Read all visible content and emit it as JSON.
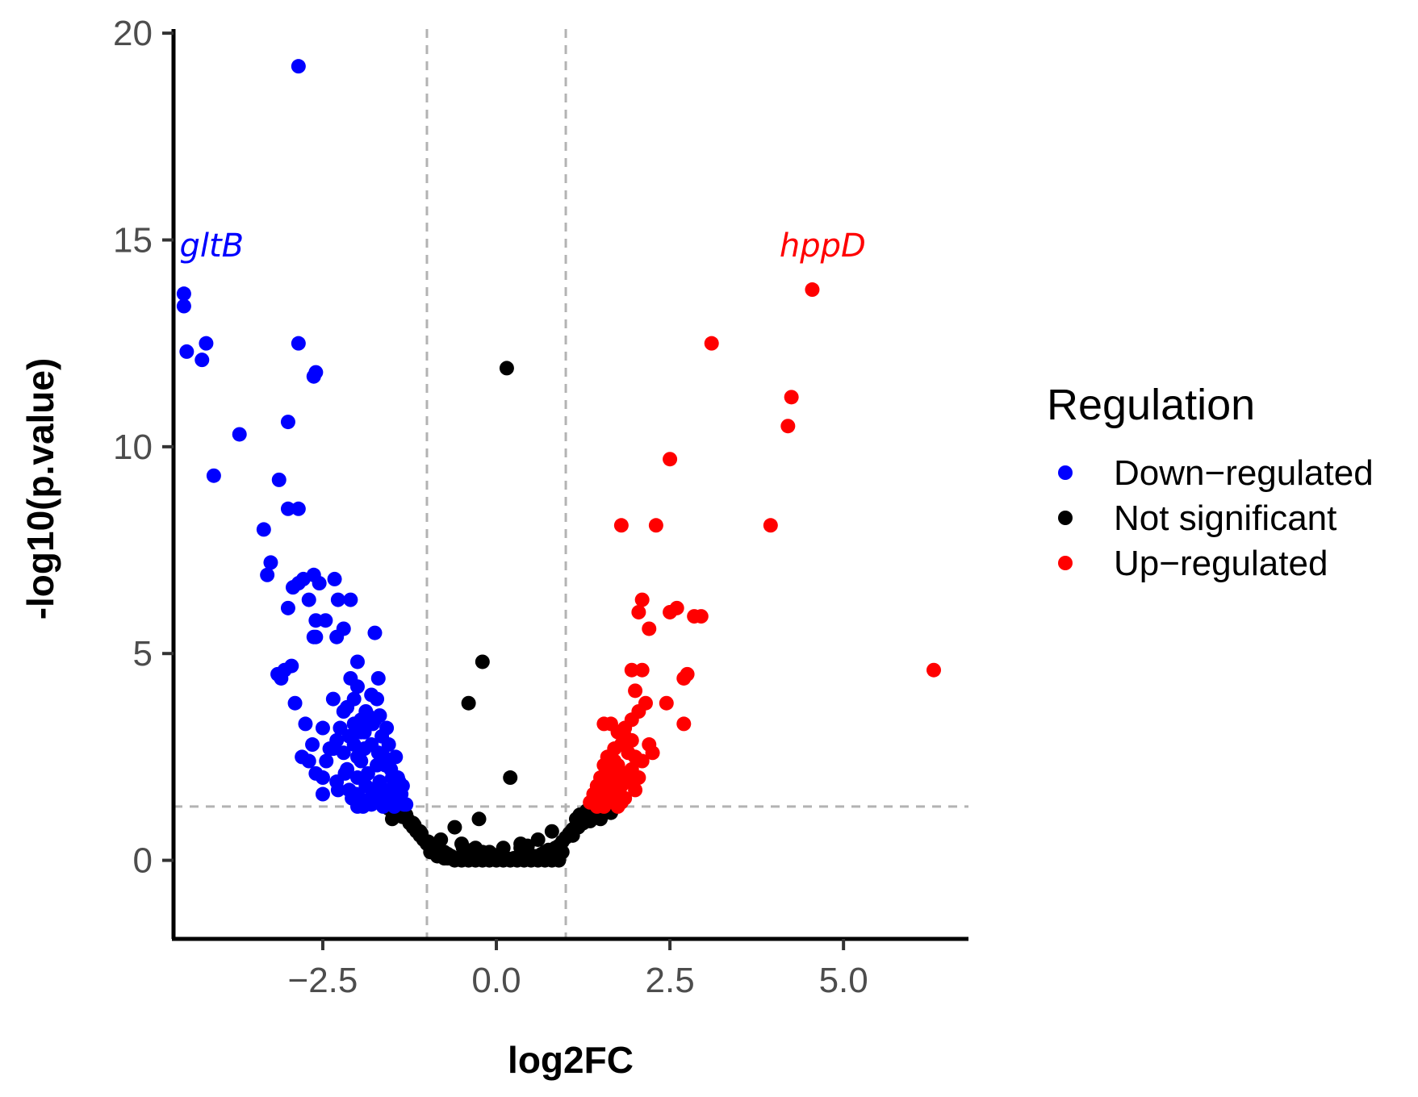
{
  "chart_data": {
    "type": "scatter",
    "title": "",
    "xlabel": "log2FC",
    "ylabel": "-log10(p.value)",
    "xlim": [
      -4.65,
      6.8
    ],
    "ylim": [
      -1.9,
      20.1
    ],
    "x_ticks": [
      -2.5,
      0.0,
      2.5,
      5.0
    ],
    "x_tick_labels": [
      "−2.5",
      "0.0",
      "2.5",
      "5.0"
    ],
    "y_ticks": [
      0,
      5,
      10,
      15,
      20
    ],
    "y_tick_labels": [
      "0",
      "5",
      "10",
      "15",
      "20"
    ],
    "thresholds": {
      "log2fc": [
        -1,
        1
      ],
      "neg_log10_p": 1.3
    },
    "grid": false,
    "legend": {
      "title": "Regulation",
      "position": "right",
      "entries": [
        {
          "label": "Down−regulated",
          "color": "#0000ff"
        },
        {
          "label": "Not significant",
          "color": "#000000"
        },
        {
          "label": "Up−regulated",
          "color": "#ff0000"
        }
      ]
    },
    "annotations": [
      {
        "text": "gltB",
        "x": -4.1,
        "y": 14.6,
        "color": "#0000ff"
      },
      {
        "text": "hppD",
        "x": 4.7,
        "y": 14.6,
        "color": "#ff0000"
      }
    ],
    "series": [
      {
        "name": "Down−regulated",
        "color": "#0000ff",
        "x": [
          -2.85,
          -4.5,
          -4.5,
          -4.46,
          -4.24,
          -4.18,
          -3.7,
          -2.85,
          -2.6,
          -2.63,
          -3.0,
          -3.13,
          -4.07,
          -3.35,
          -3.0,
          -2.85,
          -3.25,
          -3.3,
          -2.78,
          -2.85,
          -2.93,
          -2.63,
          -2.55,
          -2.33,
          -2.28,
          -3.0,
          -2.7,
          -2.6,
          -2.46,
          -2.63,
          -2.1,
          -2.2,
          -2.3,
          -2.0,
          -2.6,
          -1.75,
          -2.95,
          -3.05,
          -3.1,
          -3.15,
          -2.9,
          -2.75,
          -2.35,
          -2.1,
          -2.0,
          -2.5,
          -2.8,
          -2.4,
          -2.2,
          -1.7,
          -2.65,
          -2.7,
          -2.6,
          -2.5,
          -2.25,
          -2.15,
          -2.05,
          -1.95,
          -1.85,
          -1.75,
          -1.65,
          -1.55,
          -1.45,
          -2.3,
          -2.1,
          -2.0,
          -1.9,
          -1.8,
          -1.7,
          -1.6,
          -1.5,
          -1.4,
          -1.35,
          -2.2,
          -2.05,
          -1.95,
          -1.85,
          -1.72,
          -1.62,
          -1.52,
          -1.42,
          -2.45,
          -2.35,
          -2.15,
          -2.0,
          -1.88,
          -1.78,
          -1.68,
          -1.58,
          -1.48,
          -1.38,
          -2.5,
          -2.3,
          -2.12,
          -1.97,
          -1.82,
          -1.7,
          -1.6,
          -1.5,
          -1.42,
          -1.33,
          -2.18,
          -2.02,
          -1.9,
          -1.8,
          -1.67,
          -1.57,
          -1.47,
          -2.28,
          -2.08,
          -1.92,
          -1.77,
          -1.64,
          -1.55,
          -1.45,
          -1.37,
          -1.3,
          -2.0,
          -1.85,
          -1.75,
          -1.63,
          -1.55,
          -1.9,
          -1.78,
          -1.68,
          -1.58,
          -2.05,
          -1.95,
          -2.12,
          -1.88,
          -1.72,
          -1.8
        ],
        "y": [
          19.2,
          13.7,
          13.4,
          12.3,
          12.1,
          12.5,
          10.3,
          12.5,
          11.8,
          11.7,
          10.6,
          9.2,
          9.3,
          8.0,
          8.5,
          8.5,
          7.2,
          6.9,
          6.8,
          6.7,
          6.6,
          6.9,
          6.7,
          6.8,
          6.3,
          6.1,
          6.3,
          5.8,
          5.8,
          5.4,
          6.3,
          5.6,
          5.4,
          4.8,
          5.4,
          5.5,
          4.7,
          4.6,
          4.4,
          4.5,
          3.8,
          3.3,
          3.9,
          4.4,
          4.2,
          3.2,
          2.5,
          2.7,
          3.6,
          4.4,
          2.8,
          2.4,
          2.1,
          1.6,
          3.2,
          3.7,
          3.9,
          3.4,
          3.5,
          3.4,
          3.0,
          2.8,
          2.5,
          2.9,
          3.0,
          2.5,
          2.7,
          2.8,
          2.6,
          2.3,
          2.0,
          1.9,
          1.8,
          2.6,
          2.8,
          2.4,
          2.1,
          2.3,
          2.5,
          2.2,
          2.0,
          2.4,
          2.7,
          2.2,
          2.0,
          1.8,
          1.6,
          1.9,
          1.7,
          1.5,
          1.4,
          2.0,
          1.9,
          1.7,
          1.5,
          1.4,
          1.8,
          1.6,
          1.7,
          1.5,
          1.35,
          2.1,
          1.6,
          1.45,
          1.35,
          1.5,
          1.4,
          1.3,
          1.7,
          1.5,
          1.3,
          1.45,
          1.35,
          1.4,
          1.5,
          1.6,
          1.35,
          1.3,
          1.4,
          1.6,
          1.3,
          1.45,
          3.1,
          3.3,
          3.5,
          3.2,
          3.3,
          3.1,
          3.0,
          3.6,
          3.9,
          4.0
        ]
      },
      {
        "name": "Not significant",
        "color": "#000000",
        "x": [
          0.15,
          -0.2,
          -0.4,
          0.2,
          -0.25,
          -0.6,
          -1.2,
          -1.1,
          -0.8,
          -0.5,
          -0.3,
          -0.1,
          0.1,
          0.35,
          0.6,
          0.8,
          1.15,
          1.2,
          1.25,
          1.3,
          1.4,
          1.5,
          1.6,
          -1.3,
          -1.4,
          -1.5,
          -1.25,
          -1.35,
          -1.15,
          -1.05,
          -0.95,
          -0.9,
          -0.85,
          -0.75,
          -0.7,
          -0.65,
          -0.55,
          -0.45,
          -0.35,
          -0.25,
          -0.15,
          -0.05,
          0.05,
          0.15,
          0.25,
          0.3,
          0.4,
          0.45,
          0.5,
          0.55,
          0.65,
          0.7,
          0.75,
          0.85,
          0.9,
          0.95,
          1.0,
          1.05,
          1.1,
          -1.0,
          -0.9,
          -0.8,
          -0.7,
          -0.6,
          -0.5,
          -0.4,
          -0.3,
          -0.2,
          -0.1,
          0.0,
          0.1,
          0.2,
          0.3,
          0.4,
          0.5,
          0.6,
          0.7,
          0.8,
          0.9,
          -1.1,
          -1.2,
          1.1,
          1.2,
          1.3,
          -0.95,
          -0.85,
          -0.75,
          0.75,
          0.85,
          0.95,
          1.35,
          1.45,
          1.55,
          -1.45,
          -1.55,
          1.65,
          -1.28,
          -1.18,
          -1.08,
          -0.98,
          1.08,
          1.18,
          1.28,
          -0.48,
          -0.2,
          0.35,
          0.05,
          -0.35,
          0.45
        ],
        "y": [
          11.9,
          4.8,
          3.8,
          2.0,
          1.0,
          0.8,
          0.9,
          0.7,
          0.5,
          0.4,
          0.3,
          0.2,
          0.3,
          0.4,
          0.5,
          0.7,
          1.0,
          1.1,
          0.9,
          1.2,
          1.1,
          1.0,
          1.2,
          1.1,
          1.2,
          1.0,
          0.9,
          1.05,
          0.7,
          0.5,
          0.35,
          0.3,
          0.25,
          0.2,
          0.15,
          0.1,
          0.05,
          0.05,
          0.1,
          0.05,
          0.05,
          0.05,
          0.05,
          0.05,
          0.05,
          0.05,
          0.05,
          0.1,
          0.05,
          0.1,
          0.15,
          0.2,
          0.25,
          0.3,
          0.35,
          0.45,
          0.55,
          0.65,
          0.75,
          0.4,
          0.25,
          0.15,
          0.05,
          0.0,
          0.0,
          0.0,
          0.0,
          0.0,
          0.0,
          0.0,
          0.0,
          0.0,
          0.0,
          0.0,
          0.0,
          0.0,
          0.0,
          0.0,
          0.0,
          0.6,
          0.8,
          0.6,
          0.85,
          0.95,
          0.2,
          0.1,
          0.05,
          0.05,
          0.1,
          0.2,
          0.95,
          1.05,
          1.15,
          1.15,
          1.25,
          1.15,
          1.0,
          0.85,
          0.65,
          0.45,
          0.7,
          0.8,
          0.95,
          0.3,
          0.2,
          0.3,
          0.15,
          0.25,
          0.35
        ]
      },
      {
        "name": "Up−regulated",
        "color": "#ff0000",
        "x": [
          4.55,
          3.1,
          4.25,
          4.2,
          2.5,
          1.8,
          2.3,
          3.95,
          2.1,
          2.05,
          2.5,
          2.6,
          2.85,
          2.95,
          2.2,
          6.3,
          1.95,
          2.1,
          2.7,
          2.75,
          2.0,
          2.45,
          2.15,
          2.05,
          1.95,
          1.85,
          2.2,
          2.7,
          1.55,
          1.65,
          1.75,
          1.85,
          1.95,
          2.25,
          1.6,
          1.7,
          1.8,
          1.9,
          2.0,
          2.1,
          1.55,
          1.65,
          1.75,
          1.85,
          1.95,
          2.05,
          1.5,
          1.6,
          1.7,
          1.8,
          1.9,
          2.0,
          1.45,
          1.55,
          1.65,
          1.75,
          1.85,
          1.4,
          1.5,
          1.6,
          1.7,
          1.8,
          1.35,
          1.45,
          1.55,
          1.65,
          1.75,
          1.6,
          1.7,
          1.8,
          1.5,
          1.65
        ],
        "y": [
          13.8,
          12.5,
          11.2,
          10.5,
          9.7,
          8.1,
          8.1,
          8.1,
          6.3,
          6.0,
          6.0,
          6.1,
          5.9,
          5.9,
          5.6,
          4.6,
          4.6,
          4.6,
          4.4,
          4.5,
          4.1,
          3.8,
          3.8,
          3.6,
          3.4,
          3.2,
          2.8,
          3.3,
          3.3,
          3.3,
          3.1,
          3.0,
          2.9,
          2.6,
          2.5,
          2.7,
          2.8,
          2.6,
          2.5,
          2.4,
          2.3,
          2.2,
          2.3,
          2.1,
          2.2,
          2.0,
          2.0,
          1.9,
          2.1,
          1.8,
          1.9,
          1.7,
          1.8,
          1.7,
          1.6,
          1.8,
          1.5,
          1.6,
          1.5,
          1.4,
          1.6,
          1.4,
          1.4,
          1.3,
          1.3,
          1.5,
          1.3,
          2.2,
          2.4,
          2.0,
          1.7,
          1.9
        ]
      }
    ]
  }
}
